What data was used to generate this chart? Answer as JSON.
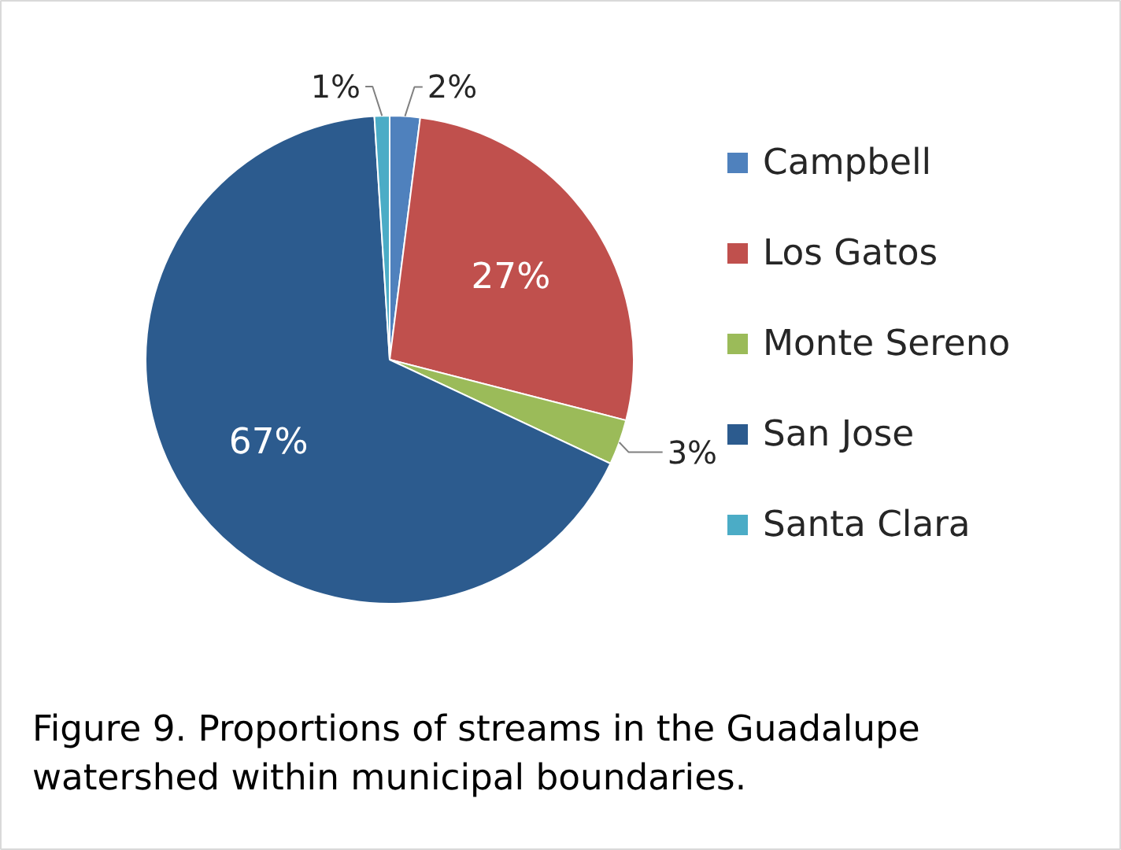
{
  "chart_data": {
    "type": "pie",
    "categories": [
      "Campbell",
      "Los Gatos",
      "Monte Sereno",
      "San Jose",
      "Santa Clara"
    ],
    "values": [
      2,
      27,
      3,
      67,
      1
    ],
    "colors": [
      "#4f81bd",
      "#c0504d",
      "#9bbb59",
      "#2c5b8e",
      "#4bacc6"
    ],
    "value_labels": [
      "2%",
      "27%",
      "3%",
      "67%",
      "1%"
    ],
    "legend": "right",
    "annotations": [
      "Figure 9.  Proportions of streams in the Guadalupe watershed within municipal boundaries."
    ]
  }
}
